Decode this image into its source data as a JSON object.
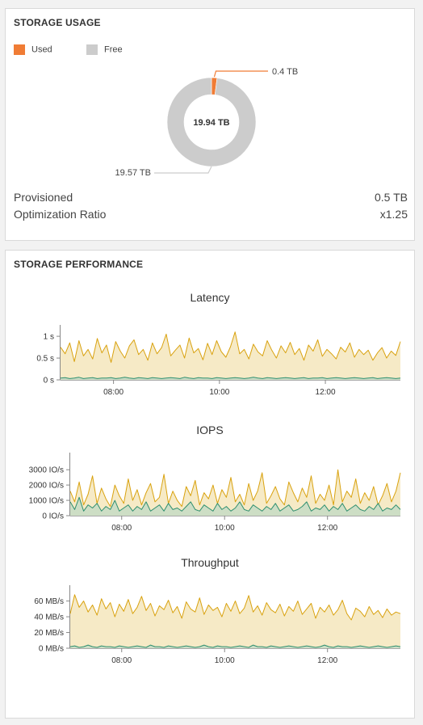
{
  "storage_usage": {
    "title": "STORAGE USAGE",
    "legend": [
      {
        "label": "Used",
        "color": "#f07c35"
      },
      {
        "label": "Free",
        "color": "#cccccc"
      }
    ],
    "center_label": "19.94 TB",
    "used_label": "0.4 TB",
    "free_label": "19.57 TB",
    "provisioned_label": "Provisioned",
    "provisioned_value": "0.5 TB",
    "ratio_label": "Optimization Ratio",
    "ratio_value": "x1.25"
  },
  "storage_performance": {
    "title": "STORAGE PERFORMANCE",
    "latency_title": "Latency",
    "iops_title": "IOPS",
    "throughput_title": "Throughput"
  },
  "colors": {
    "primary_line": "#d9a20f",
    "primary_fill": "#f6eac6",
    "secondary_line": "#2e8f6f",
    "secondary_fill": "#c9ddc4"
  },
  "chart_data": [
    {
      "type": "pie",
      "title": "",
      "categories": [
        "Used",
        "Free"
      ],
      "values": [
        0.4,
        19.57
      ]
    },
    {
      "type": "area",
      "title": "Latency",
      "x_ticks": [
        "08:00",
        "10:00",
        "12:00"
      ],
      "x_range": [
        "07:00",
        "13:25"
      ],
      "y_ticks": [
        "0 s",
        "0.5 s",
        "1 s"
      ],
      "ylim": [
        0,
        1.15
      ],
      "series": [
        {
          "values": [
            0.75,
            0.6,
            0.85,
            0.42,
            0.9,
            0.55,
            0.7,
            0.48,
            0.95,
            0.62,
            0.8,
            0.4,
            0.88,
            0.66,
            0.5,
            0.78,
            0.92,
            0.58,
            0.7,
            0.45,
            0.85,
            0.6,
            0.74,
            1.05,
            0.55,
            0.68,
            0.8,
            0.5,
            0.96,
            0.62,
            0.72,
            0.46,
            0.84,
            0.58,
            0.9,
            0.65,
            0.52,
            0.76,
            1.1,
            0.6,
            0.7,
            0.48,
            0.82,
            0.64,
            0.55,
            0.9,
            0.68,
            0.5,
            0.78,
            0.62,
            0.86,
            0.58,
            0.72,
            0.45,
            0.8,
            0.66,
            0.92,
            0.54,
            0.7,
            0.6,
            0.48,
            0.75,
            0.64,
            0.85,
            0.52,
            0.7,
            0.58,
            0.68,
            0.45,
            0.62,
            0.74,
            0.5,
            0.66,
            0.56,
            0.88
          ]
        },
        {
          "values": [
            0.04,
            0.05,
            0.03,
            0.04,
            0.06,
            0.03,
            0.04,
            0.05,
            0.03,
            0.04,
            0.04,
            0.05,
            0.03,
            0.04,
            0.06,
            0.04,
            0.03,
            0.05,
            0.04,
            0.03,
            0.05,
            0.04,
            0.03,
            0.04,
            0.05,
            0.04,
            0.03,
            0.06,
            0.04,
            0.03,
            0.05,
            0.04,
            0.04,
            0.03,
            0.05,
            0.04,
            0.03,
            0.04,
            0.05,
            0.04,
            0.03,
            0.04,
            0.06,
            0.04,
            0.03,
            0.05,
            0.04,
            0.03,
            0.04,
            0.05,
            0.04,
            0.03,
            0.04,
            0.05,
            0.03,
            0.04,
            0.04,
            0.05,
            0.03,
            0.04,
            0.05,
            0.04,
            0.03,
            0.04,
            0.05,
            0.04,
            0.03,
            0.04,
            0.05,
            0.03,
            0.04,
            0.05,
            0.04,
            0.03,
            0.04
          ]
        }
      ]
    },
    {
      "type": "area",
      "title": "IOPS",
      "x_ticks": [
        "08:00",
        "10:00",
        "12:00"
      ],
      "x_range": [
        "07:00",
        "13:25"
      ],
      "y_ticks": [
        "0 IO/s",
        "1000 IO/s",
        "2000 IO/s",
        "3000 IO/s"
      ],
      "ylim": [
        0,
        3800
      ],
      "series": [
        {
          "values": [
            1600,
            900,
            2200,
            700,
            1400,
            2600,
            800,
            1800,
            1100,
            600,
            2000,
            1300,
            800,
            2400,
            1000,
            1700,
            700,
            1500,
            2100,
            900,
            1200,
            2700,
            800,
            1600,
            1000,
            600,
            1900,
            1300,
            2300,
            700,
            1500,
            1100,
            2000,
            800,
            1700,
            1200,
            2500,
            900,
            1400,
            700,
            2100,
            1000,
            1600,
            2800,
            800,
            1300,
            1900,
            1100,
            700,
            2200,
            1500,
            900,
            1800,
            1200,
            2600,
            800,
            1400,
            1000,
            2000,
            700,
            3000,
            900,
            1600,
            1200,
            2400,
            800,
            1500,
            1000,
            1900,
            700,
            1300,
            2100,
            900,
            1600,
            2800
          ]
        },
        {
          "values": [
            900,
            400,
            1200,
            300,
            700,
            500,
            800,
            300,
            600,
            400,
            1000,
            300,
            500,
            700,
            300,
            600,
            400,
            900,
            300,
            500,
            700,
            300,
            800,
            400,
            500,
            300,
            600,
            900,
            400,
            300,
            700,
            500,
            300,
            800,
            400,
            600,
            300,
            500,
            900,
            400,
            300,
            700,
            500,
            300,
            600,
            400,
            800,
            300,
            500,
            700,
            300,
            400,
            600,
            900,
            300,
            500,
            400,
            700,
            300,
            600,
            400,
            800,
            300,
            500,
            700,
            400,
            300,
            600,
            400,
            800,
            300,
            500,
            400,
            700,
            400
          ]
        }
      ]
    },
    {
      "type": "area",
      "title": "Throughput",
      "x_ticks": [
        "08:00",
        "10:00",
        "12:00"
      ],
      "x_range": [
        "07:00",
        "13:25"
      ],
      "y_ticks": [
        "0 MB/s",
        "20 MB/s",
        "40 MB/s",
        "60 MB/s"
      ],
      "ylim": [
        0,
        74
      ],
      "series": [
        {
          "values": [
            44,
            68,
            52,
            60,
            46,
            55,
            42,
            63,
            50,
            58,
            40,
            56,
            47,
            62,
            44,
            52,
            66,
            48,
            57,
            41,
            54,
            49,
            61,
            45,
            53,
            38,
            59,
            50,
            46,
            64,
            43,
            55,
            48,
            52,
            40,
            57,
            47,
            60,
            44,
            51,
            67,
            46,
            54,
            42,
            58,
            49,
            45,
            56,
            41,
            53,
            47,
            60,
            43,
            50,
            57,
            38,
            52,
            46,
            55,
            42,
            49,
            61,
            44,
            36,
            51,
            47,
            40,
            53,
            43,
            48,
            39,
            50,
            42,
            46,
            44
          ]
        },
        {
          "values": [
            2,
            3,
            1,
            2,
            4,
            2,
            1,
            3,
            2,
            2,
            1,
            3,
            2,
            1,
            2,
            3,
            2,
            1,
            4,
            2,
            2,
            1,
            3,
            2,
            1,
            2,
            3,
            2,
            1,
            2,
            4,
            2,
            1,
            3,
            2,
            2,
            1,
            2,
            3,
            2,
            1,
            4,
            2,
            2,
            1,
            3,
            2,
            1,
            2,
            3,
            2,
            1,
            2,
            3,
            2,
            1,
            2,
            4,
            2,
            1,
            3,
            2,
            2,
            1,
            2,
            3,
            2,
            1,
            2,
            3,
            2,
            1,
            2,
            3,
            2
          ]
        }
      ]
    }
  ]
}
